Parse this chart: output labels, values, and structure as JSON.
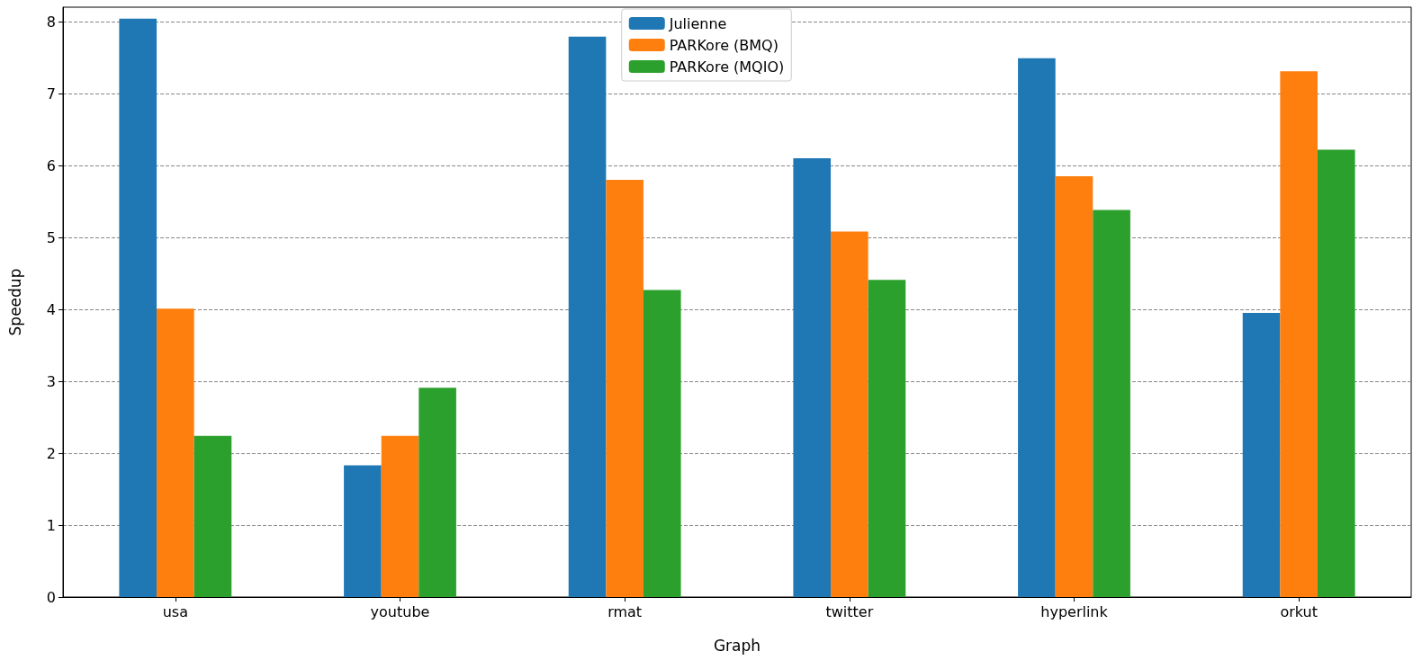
{
  "chart_data": {
    "type": "bar",
    "xlabel": "Graph",
    "ylabel": "Speedup",
    "categories": [
      "usa",
      "youtube",
      "rmat",
      "twitter",
      "hyperlink",
      "orkut"
    ],
    "series": [
      {
        "name": "Julienne",
        "color": "#1f77b4",
        "values": [
          8.04,
          1.83,
          7.79,
          6.1,
          7.49,
          3.95
        ]
      },
      {
        "name": "PARKore (BMQ)",
        "color": "#ff7f0e",
        "values": [
          4.01,
          2.24,
          5.8,
          5.08,
          5.85,
          7.31
        ]
      },
      {
        "name": "PARKore (MQIO)",
        "color": "#2ca02c",
        "values": [
          2.24,
          2.91,
          4.27,
          4.41,
          5.38,
          6.22
        ]
      }
    ],
    "ylim": [
      0,
      8.2
    ],
    "yticks": [
      0,
      1,
      2,
      3,
      4,
      5,
      6,
      7,
      8
    ],
    "grid": "y",
    "legend": "top"
  }
}
